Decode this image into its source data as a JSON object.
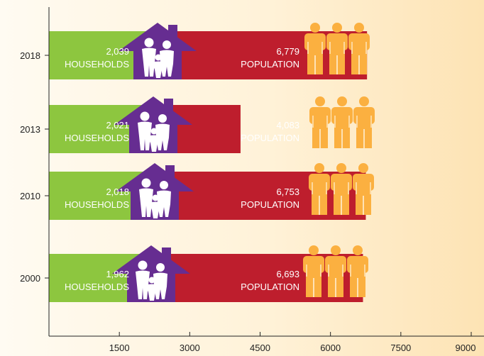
{
  "chart_data": {
    "type": "bar",
    "orientation": "horizontal",
    "categories": [
      "2018",
      "2013",
      "2010",
      "2000"
    ],
    "series": [
      {
        "name": "HOUSEHOLDS",
        "values": [
          2039,
          2021,
          2018,
          1962
        ],
        "labels": [
          "2,039",
          "2,021",
          "2,018",
          "1,962"
        ]
      },
      {
        "name": "POPULATION",
        "values": [
          6779,
          4083,
          6753,
          6693
        ],
        "labels": [
          "6,779",
          "4,083",
          "6,753",
          "6,693"
        ]
      }
    ],
    "xlim": [
      0,
      9000
    ],
    "xticks": [
      1500,
      3000,
      4500,
      6000,
      7500,
      9000
    ],
    "xtick_labels": [
      "1500",
      "3000",
      "4500",
      "6000",
      "7500",
      "9000"
    ],
    "title": "",
    "xlabel": "",
    "ylabel": "",
    "grid": false,
    "colors": {
      "households": "#8dc63f",
      "population": "#be1e2d",
      "house_icon": "#662d91",
      "people_icon": "#fbb040",
      "axis": "#222222"
    },
    "icons": {
      "households": "family-house-icon",
      "population": "people-group-icon"
    }
  }
}
